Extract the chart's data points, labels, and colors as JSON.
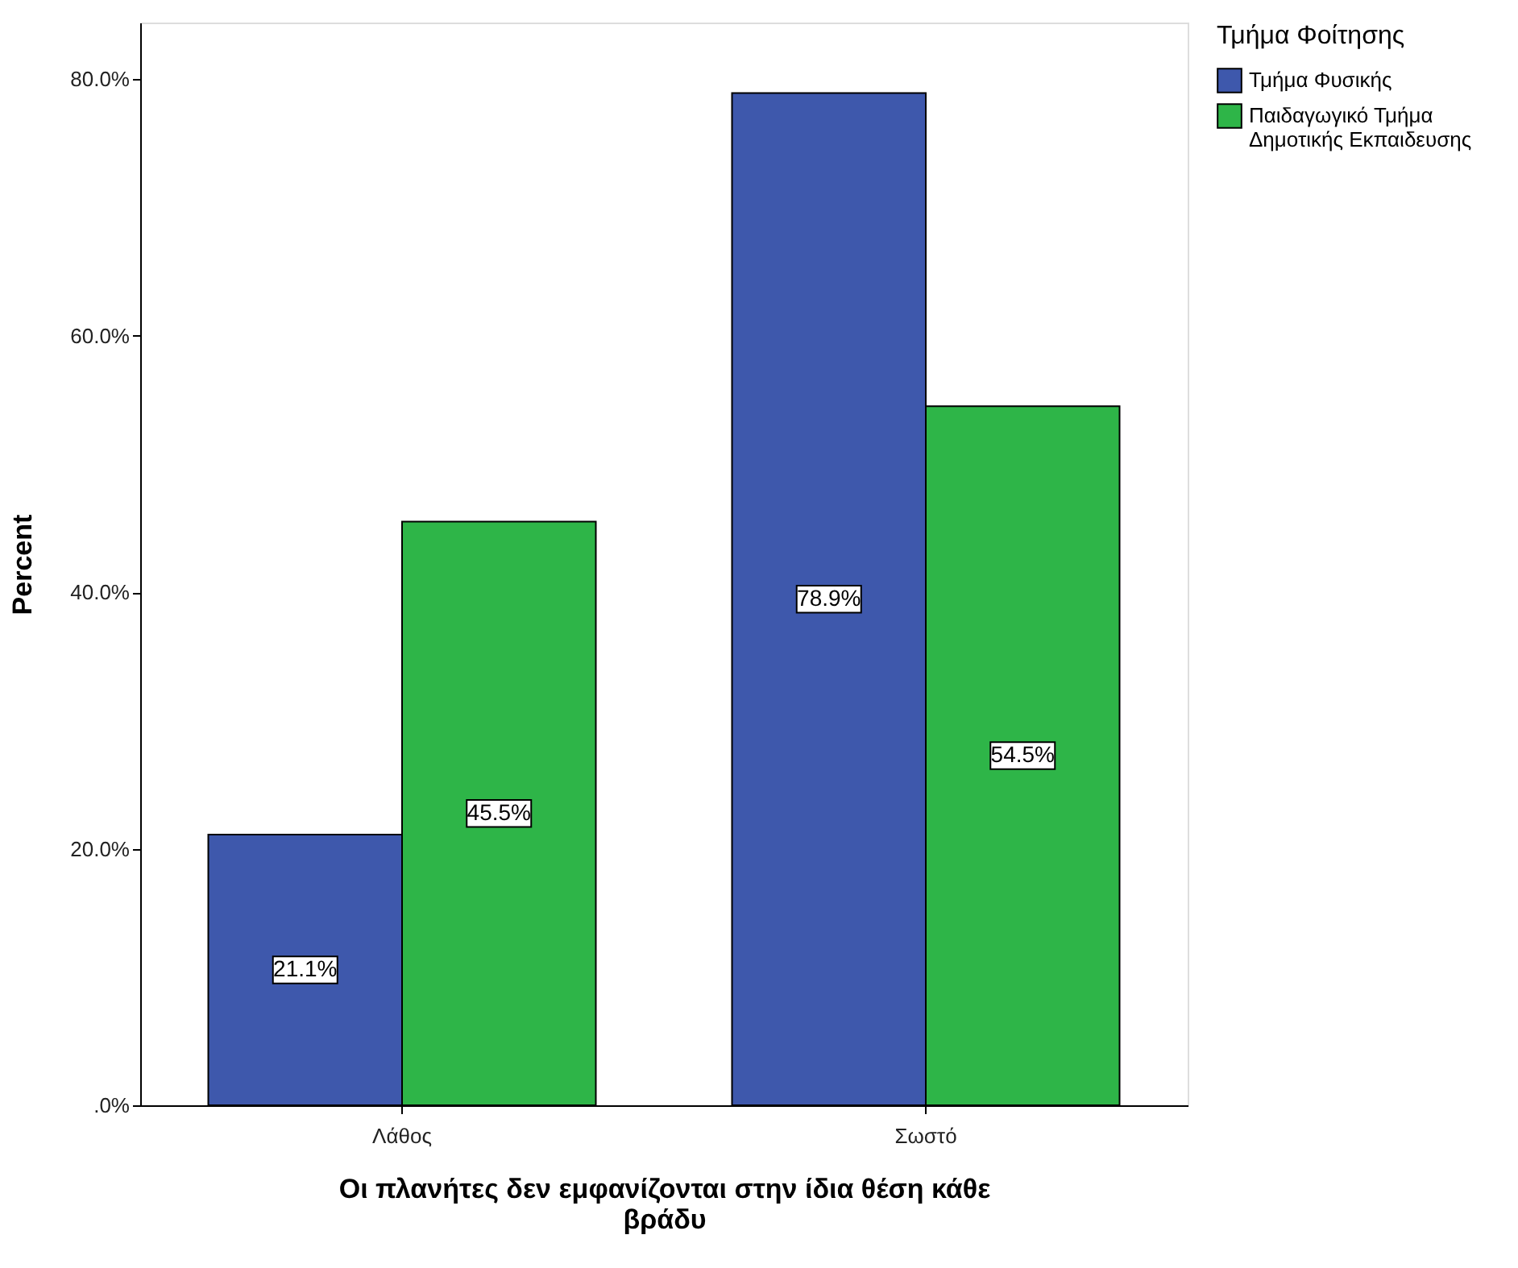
{
  "chart_data": {
    "type": "bar",
    "categories": [
      "Λάθος",
      "Σωστό"
    ],
    "series": [
      {
        "name": "Τμήμα Φυσικής",
        "color": "#3e58ac",
        "values": [
          21.1,
          78.9
        ],
        "value_labels": [
          "21.1%",
          "78.9%"
        ]
      },
      {
        "name": "Παιδαγωγικό Τμήμα Δημοτικής Εκπαιδευσης",
        "color": "#2eb548",
        "values": [
          45.5,
          54.5
        ],
        "value_labels": [
          "45.5%",
          "54.5%"
        ]
      }
    ],
    "xlabel": "Οι πλανήτες δεν εμφανίζονται στην ίδια θέση κάθε βράδυ",
    "ylabel": "Percent",
    "legend_title": "Τμήμα Φοίτησης",
    "ylim": [
      0,
      84.4
    ],
    "yticks": [
      {
        "value": 0,
        "label": ".0%"
      },
      {
        "value": 20,
        "label": "20.0%"
      },
      {
        "value": 40,
        "label": "40.0%"
      },
      {
        "value": 60,
        "label": "60.0%"
      },
      {
        "value": 80,
        "label": "80.0%"
      }
    ],
    "grid": false,
    "legend": "top right"
  }
}
